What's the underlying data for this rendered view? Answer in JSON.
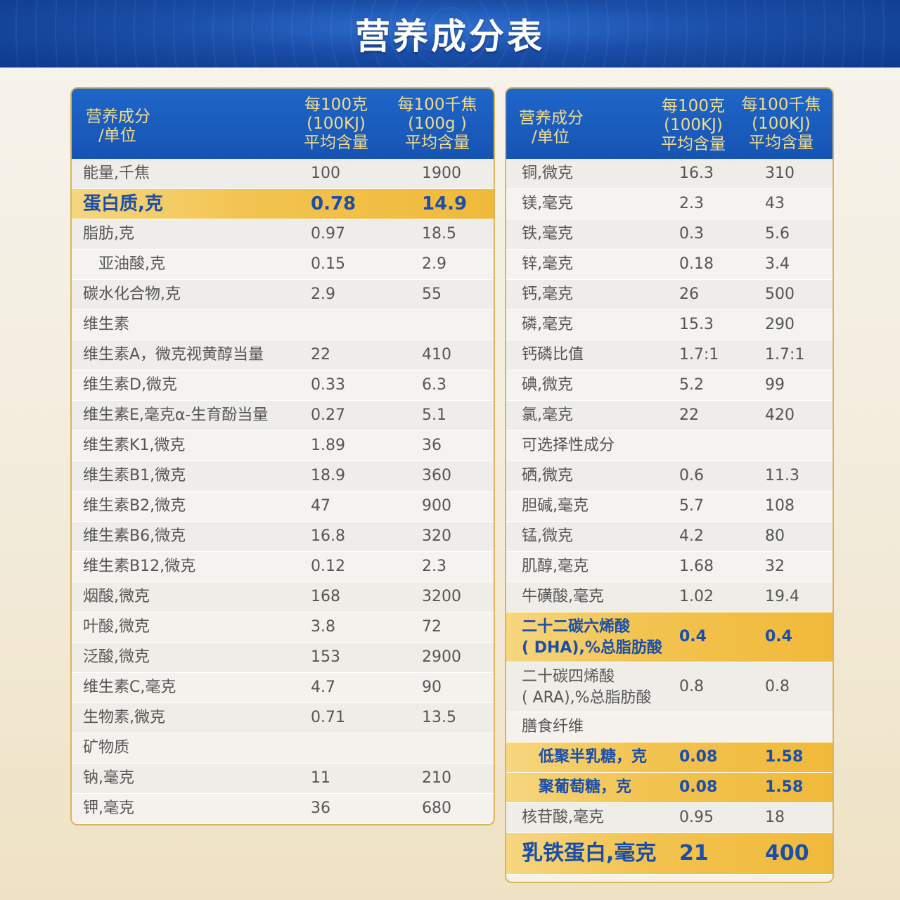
{
  "title": "营养成分表",
  "left": {
    "headers": {
      "name": [
        "营养成分",
        "/单位"
      ],
      "col1": [
        "每100克",
        "(100KJ)",
        "平均含量"
      ],
      "col2": [
        "每100千焦",
        "(100g )",
        "平均含量"
      ]
    },
    "rows": [
      {
        "name": "能量,千焦",
        "v1": "100",
        "v2": "1900"
      },
      {
        "name": "蛋白质,克",
        "v1": "0.78",
        "v2": "14.9",
        "highlight": true
      },
      {
        "name": "脂肪,克",
        "v1": "0.97",
        "v2": "18.5"
      },
      {
        "name": "亚油酸,克",
        "v1": "0.15",
        "v2": "2.9",
        "indent": true
      },
      {
        "name": "碳水化合物,克",
        "v1": "2.9",
        "v2": "55"
      },
      {
        "name": "维生素",
        "v1": "",
        "v2": ""
      },
      {
        "name": "维生素A，微克视黄醇当量",
        "v1": "22",
        "v2": "410"
      },
      {
        "name": "维生素D,微克",
        "v1": "0.33",
        "v2": "6.3"
      },
      {
        "name": "维生素E,毫克α-生育酚当量",
        "v1": "0.27",
        "v2": "5.1"
      },
      {
        "name": "维生素K1,微克",
        "v1": "1.89",
        "v2": "36"
      },
      {
        "name": "维生素B1,微克",
        "v1": "18.9",
        "v2": "360"
      },
      {
        "name": "维生素B2,微克",
        "v1": "47",
        "v2": "900"
      },
      {
        "name": "维生素B6,微克",
        "v1": "16.8",
        "v2": "320"
      },
      {
        "name": "维生素B12,微克",
        "v1": "0.12",
        "v2": "2.3"
      },
      {
        "name": "烟酸,微克",
        "v1": "168",
        "v2": "3200"
      },
      {
        "name": "叶酸,微克",
        "v1": "3.8",
        "v2": "72"
      },
      {
        "name": "泛酸,微克",
        "v1": "153",
        "v2": "2900"
      },
      {
        "name": "维生素C,毫克",
        "v1": "4.7",
        "v2": "90"
      },
      {
        "name": "生物素,微克",
        "v1": "0.71",
        "v2": "13.5"
      },
      {
        "name": "矿物质",
        "v1": "",
        "v2": ""
      },
      {
        "name": "钠,毫克",
        "v1": "11",
        "v2": "210"
      },
      {
        "name": "钾,毫克",
        "v1": "36",
        "v2": "680"
      }
    ]
  },
  "right": {
    "headers": {
      "name": [
        "营养成分",
        "/单位"
      ],
      "col1": [
        "每100克",
        "(100KJ)",
        "平均含量"
      ],
      "col2": [
        "每100千焦",
        "(100KJ)",
        "平均含量"
      ]
    },
    "rows": [
      {
        "name": "铜,微克",
        "v1": "16.3",
        "v2": "310"
      },
      {
        "name": "镁,毫克",
        "v1": "2.3",
        "v2": "43"
      },
      {
        "name": "铁,毫克",
        "v1": "0.3",
        "v2": "5.6"
      },
      {
        "name": "锌,毫克",
        "v1": "0.18",
        "v2": "3.4"
      },
      {
        "name": "钙,毫克",
        "v1": "26",
        "v2": "500"
      },
      {
        "name": "磷,毫克",
        "v1": "15.3",
        "v2": "290"
      },
      {
        "name": "钙磷比值",
        "v1": "1.7:1",
        "v2": "1.7:1"
      },
      {
        "name": "碘,微克",
        "v1": "5.2",
        "v2": "99"
      },
      {
        "name": "氯,毫克",
        "v1": "22",
        "v2": "420"
      },
      {
        "name": "可选择性成分",
        "v1": "",
        "v2": ""
      },
      {
        "name": "硒,微克",
        "v1": "0.6",
        "v2": "11.3"
      },
      {
        "name": "胆碱,毫克",
        "v1": "5.7",
        "v2": "108"
      },
      {
        "name": "锰,微克",
        "v1": "4.2",
        "v2": "80"
      },
      {
        "name": "肌醇,毫克",
        "v1": "1.68",
        "v2": "32"
      },
      {
        "name": "牛磺酸,毫克",
        "v1": "1.02",
        "v2": "19.4"
      },
      {
        "name": "二十二碳六烯酸",
        "name2": "( DHA),%总脂肪酸",
        "v1": "0.4",
        "v2": "0.4",
        "highlight": true,
        "tall": true
      },
      {
        "name": "二十碳四烯酸",
        "name2": "( ARA),%总脂肪酸",
        "v1": "0.8",
        "v2": "0.8",
        "tall": true
      },
      {
        "name": "膳食纤维",
        "v1": "",
        "v2": ""
      },
      {
        "name": "低聚半乳糖，克",
        "v1": "0.08",
        "v2": "1.58",
        "highlight": true,
        "indent": true
      },
      {
        "name": "聚葡萄糖，克",
        "v1": "0.08",
        "v2": "1.58",
        "highlight": true,
        "indent": true
      },
      {
        "name": "核苷酸,毫克",
        "v1": "0.95",
        "v2": "18"
      },
      {
        "name": "乳铁蛋白,毫克",
        "v1": "21",
        "v2": "400",
        "highlight": true,
        "final": true
      }
    ]
  }
}
